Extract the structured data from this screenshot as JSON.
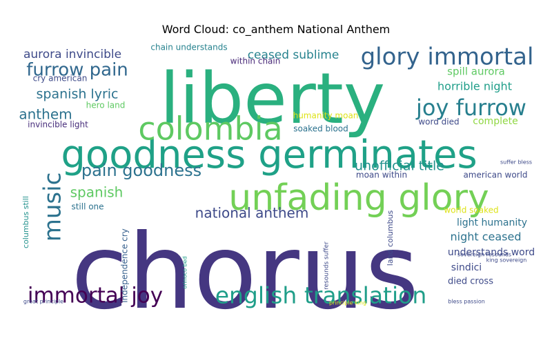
{
  "chart_data": {
    "type": "wordcloud",
    "title": "Word Cloud: co_anthem National Anthem",
    "colormap": "viridis",
    "words": [
      {
        "text": "chorus",
        "weight": 1.0,
        "color": "#453781"
      },
      {
        "text": "liberty",
        "weight": 0.72,
        "color": "#2ab07f"
      },
      {
        "text": "goodness germinates",
        "weight": 0.48,
        "color": "#1fa187"
      },
      {
        "text": "unfading glory",
        "weight": 0.44,
        "color": "#73d056"
      },
      {
        "text": "colombia",
        "weight": 0.36,
        "color": "#5ec962"
      },
      {
        "text": "glory immortal",
        "weight": 0.3,
        "color": "#33638d"
      },
      {
        "text": "joy furrow",
        "weight": 0.28,
        "color": "#277f8e"
      },
      {
        "text": "english translation",
        "weight": 0.28,
        "color": "#1f9e89"
      },
      {
        "text": "immortal joy",
        "weight": 0.27,
        "color": "#440154"
      },
      {
        "text": "music",
        "weight": 0.26,
        "color": "#2c728e"
      },
      {
        "text": "furrow pain",
        "weight": 0.2,
        "color": "#31688e"
      },
      {
        "text": "pain goodness",
        "weight": 0.18,
        "color": "#2c728e"
      },
      {
        "text": "spanish lyric",
        "weight": 0.16,
        "color": "#2c728e"
      },
      {
        "text": "national anthem",
        "weight": 0.16,
        "color": "#3e4a89"
      },
      {
        "text": "anthem",
        "weight": 0.16,
        "color": "#2c728e"
      },
      {
        "text": "spanish",
        "weight": 0.15,
        "color": "#5ec962"
      },
      {
        "text": "unofficial title",
        "weight": 0.14,
        "color": "#21918c"
      },
      {
        "text": "ceased sublime",
        "weight": 0.13,
        "color": "#26828e"
      },
      {
        "text": "aurora invincible",
        "weight": 0.13,
        "color": "#3e4a89"
      },
      {
        "text": "horrible night",
        "weight": 0.12,
        "color": "#1f9e89"
      },
      {
        "text": "spill aurora",
        "weight": 0.12,
        "color": "#5ec962"
      },
      {
        "text": "night ceased",
        "weight": 0.12,
        "color": "#2c728e"
      },
      {
        "text": "understands word",
        "weight": 0.11,
        "color": "#3e4a89"
      },
      {
        "text": "light humanity",
        "weight": 0.11,
        "color": "#2c728e"
      },
      {
        "text": "sindici",
        "weight": 0.11,
        "color": "#3e4a89"
      },
      {
        "text": "complete",
        "weight": 0.11,
        "color": "#90d743"
      },
      {
        "text": "died cross",
        "weight": 0.1,
        "color": "#3e4a89"
      },
      {
        "text": "independence cry",
        "weight": 0.09,
        "color": "#355f8d"
      },
      {
        "text": "chain understands",
        "weight": 0.09,
        "color": "#26828e"
      },
      {
        "text": "moan within",
        "weight": 0.09,
        "color": "#3e4a89"
      },
      {
        "text": "within chain",
        "weight": 0.09,
        "color": "#482878"
      },
      {
        "text": "cry american",
        "weight": 0.09,
        "color": "#3e4a89"
      },
      {
        "text": "hero land",
        "weight": 0.09,
        "color": "#5ec962"
      },
      {
        "text": "invincible light",
        "weight": 0.09,
        "color": "#472d7b"
      },
      {
        "text": "humanity moan",
        "weight": 0.09,
        "color": "#dde318"
      },
      {
        "text": "soaked blood",
        "weight": 0.09,
        "color": "#2c728e"
      },
      {
        "text": "word died",
        "weight": 0.09,
        "color": "#3e4a89"
      },
      {
        "text": "american world",
        "weight": 0.09,
        "color": "#3e4a89"
      },
      {
        "text": "world soaked",
        "weight": 0.09,
        "color": "#dde318"
      },
      {
        "text": "still one",
        "weight": 0.08,
        "color": "#2c728e"
      },
      {
        "text": "columbus still",
        "weight": 0.08,
        "color": "#21918c"
      },
      {
        "text": "land columbus",
        "weight": 0.08,
        "color": "#3e4a89"
      },
      {
        "text": "resounds suffer",
        "weight": 0.06,
        "color": "#3e4a89"
      },
      {
        "text": "orinoco bed",
        "weight": 0.05,
        "color": "#1f9e89"
      },
      {
        "text": "suffer bless",
        "weight": 0.05,
        "color": "#3e4a89"
      },
      {
        "text": "sovereign resounds",
        "weight": 0.05,
        "color": "#3e4a89"
      },
      {
        "text": "king sovereign",
        "weight": 0.05,
        "color": "#3e4a89"
      },
      {
        "text": "bless passion",
        "weight": 0.05,
        "color": "#3e4a89"
      },
      {
        "text": "principle king",
        "weight": 0.05,
        "color": "#dde318"
      },
      {
        "text": "great principle",
        "weight": 0.05,
        "color": "#3e4a89"
      }
    ]
  }
}
